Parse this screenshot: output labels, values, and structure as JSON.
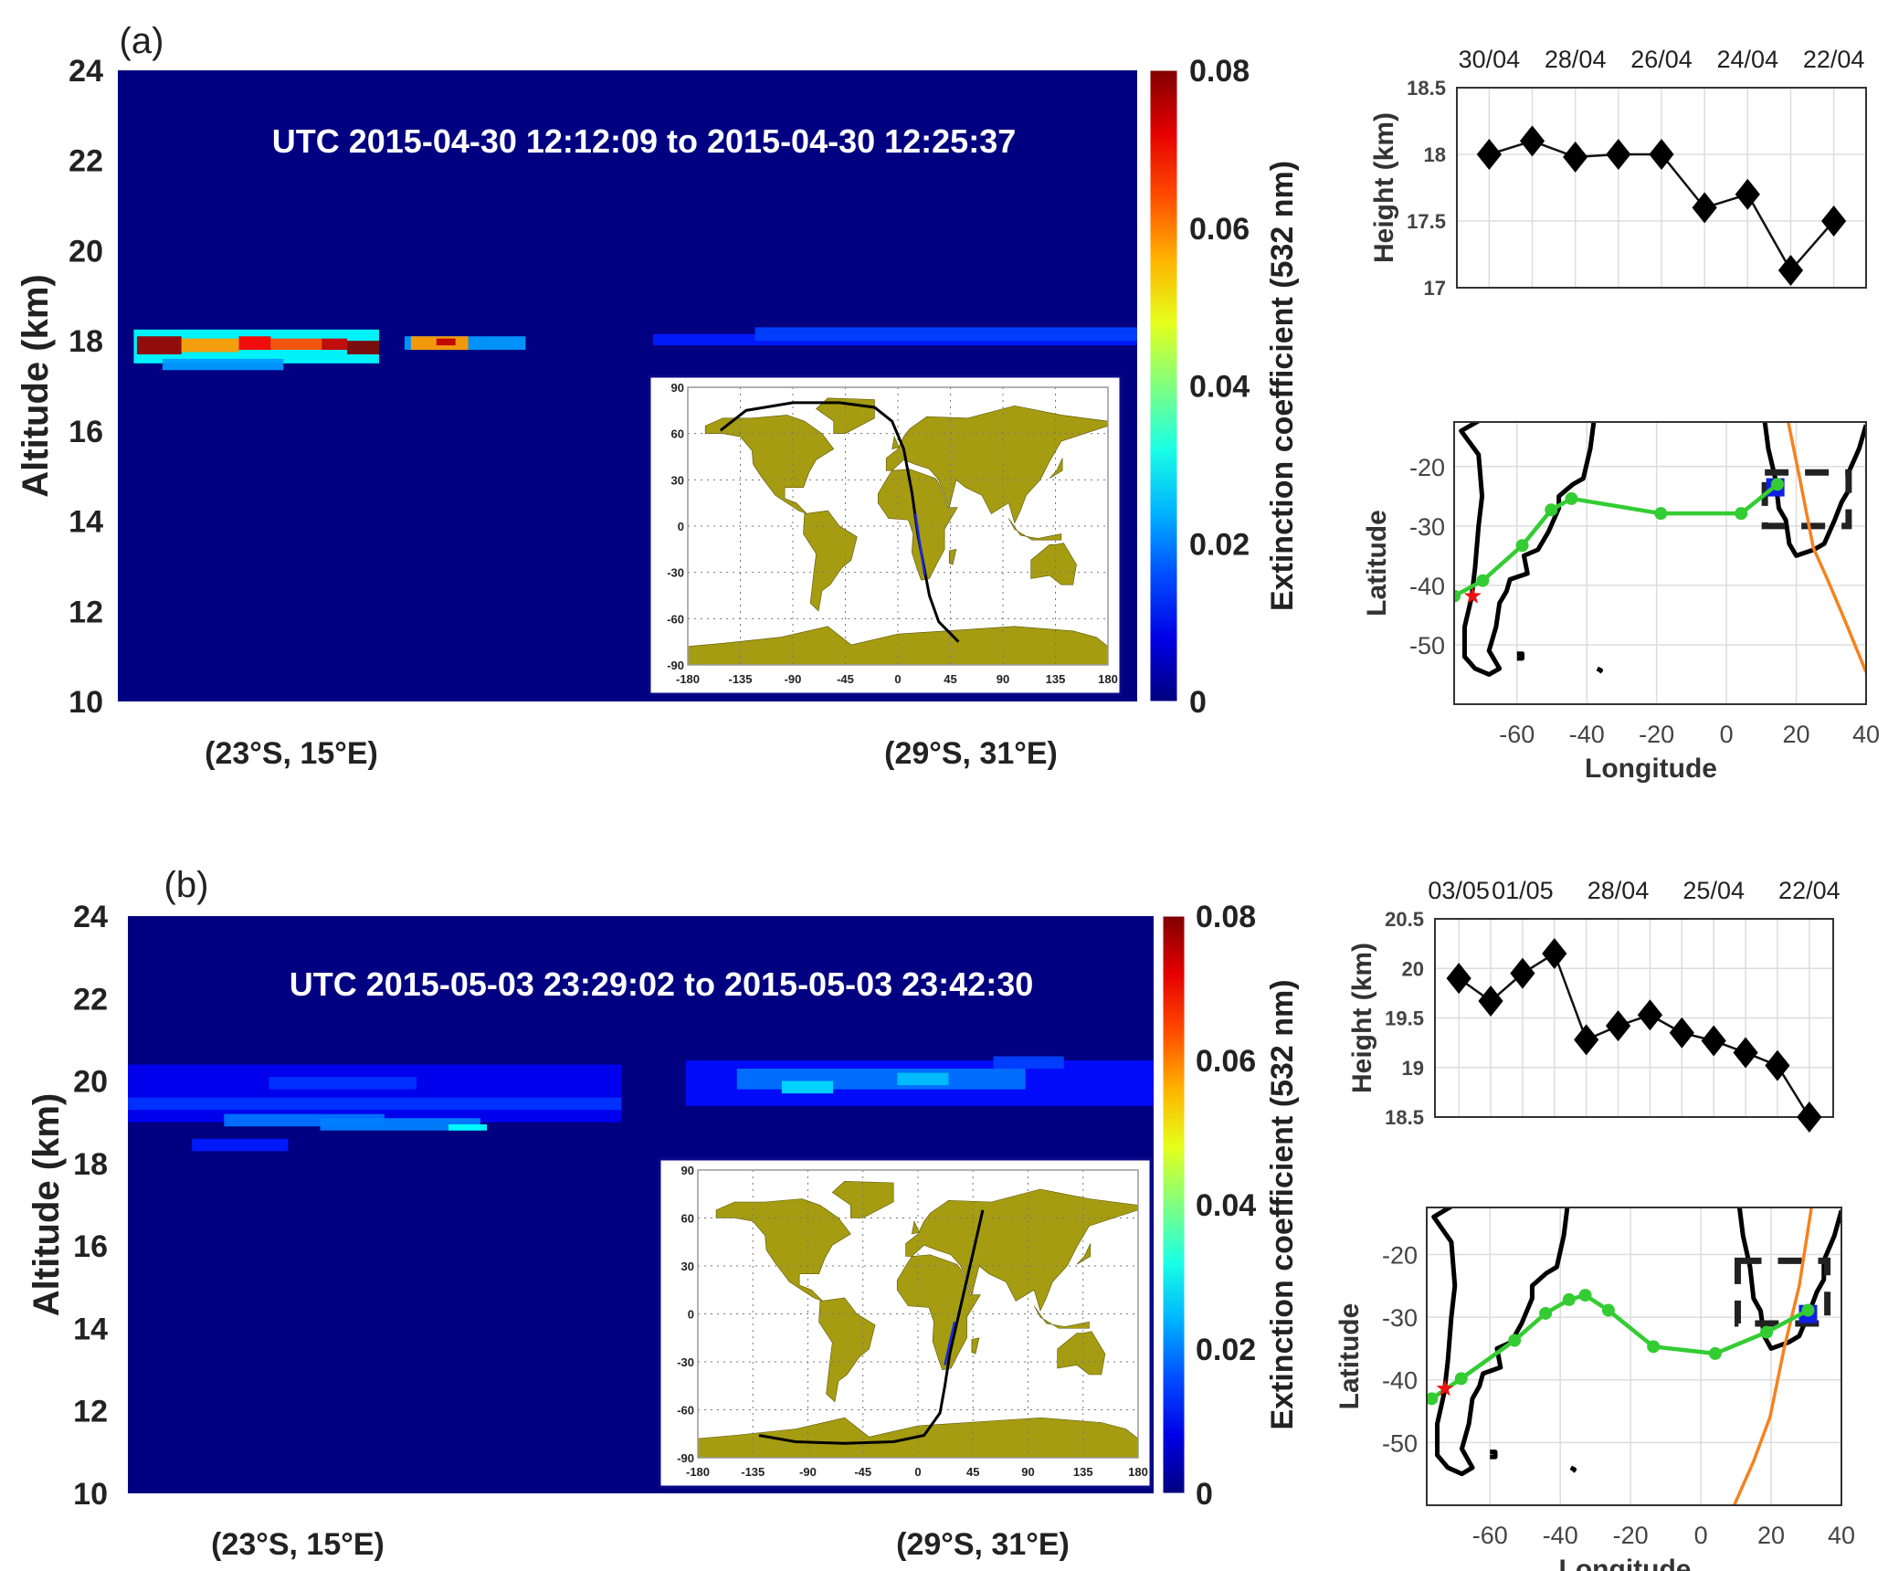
{
  "chart_data": [
    {
      "panel_label": "(a)",
      "type": "heatmap",
      "title": "UTC 2015-04-30 12:12:09 to 2015-04-30 12:25:37",
      "ylabel": "Altitude (km)",
      "ylim": [
        10,
        24
      ],
      "yticks": [
        "10",
        "12",
        "14",
        "16",
        "18",
        "20",
        "22",
        "24"
      ],
      "xlim_lon": [
        15,
        31
      ],
      "x_start_label": "(23°S, 15°E)",
      "x_end_label": "(29°S, 31°E)",
      "colorbar": {
        "label": "Extinction coefficient (532 nm)",
        "range": [
          0,
          0.08
        ],
        "ticks": [
          "0",
          "0.02",
          "0.04",
          "0.06",
          "0.08"
        ]
      },
      "cells": [
        [
          15.25,
          19.1,
          17.5,
          18.25,
          0.03
        ],
        [
          15.7,
          17.6,
          17.35,
          17.6,
          0.022
        ],
        [
          15.3,
          16.0,
          17.7,
          18.1,
          0.078
        ],
        [
          16.0,
          16.9,
          17.75,
          18.05,
          0.058
        ],
        [
          16.9,
          17.4,
          17.8,
          18.1,
          0.07
        ],
        [
          17.4,
          18.2,
          17.8,
          18.05,
          0.064
        ],
        [
          18.2,
          18.6,
          17.8,
          18.05,
          0.074
        ],
        [
          18.6,
          19.1,
          17.7,
          18.0,
          0.08
        ],
        [
          19.5,
          21.4,
          17.8,
          18.1,
          0.022
        ],
        [
          19.6,
          20.5,
          17.8,
          18.1,
          0.058
        ],
        [
          20.0,
          20.3,
          17.9,
          18.05,
          0.075
        ],
        [
          23.4,
          31.0,
          17.9,
          18.15,
          0.012
        ],
        [
          25.0,
          31.0,
          18.0,
          18.3,
          0.015
        ]
      ],
      "inset_map": {
        "xticks": [
          "-180",
          "-135",
          "-90",
          "-45",
          "0",
          "45",
          "90",
          "135",
          "180"
        ],
        "yticks": [
          "-90",
          "-60",
          "-30",
          "0",
          "30",
          "60",
          "90"
        ],
        "orbit_track": [
          [
            -152,
            62
          ],
          [
            -130,
            75
          ],
          [
            -90,
            80
          ],
          [
            -50,
            80
          ],
          [
            -20,
            77
          ],
          [
            -5,
            68
          ],
          [
            5,
            50
          ],
          [
            12,
            22
          ],
          [
            17,
            -5
          ],
          [
            22,
            -25
          ],
          [
            27,
            -45
          ],
          [
            35,
            -62
          ],
          [
            52,
            -75
          ]
        ],
        "calipso_segment": [
          [
            15,
            8
          ],
          [
            19,
            -12
          ],
          [
            23,
            -32
          ]
        ]
      },
      "height_series": {
        "type": "line",
        "ylabel": "Height (km)",
        "ylim": [
          17,
          18.5
        ],
        "yticks": [
          "17",
          "17.5",
          "18",
          "18.5"
        ],
        "dates": [
          "30/04",
          "29/04",
          "28/04",
          "27/04",
          "26/04",
          "25/04",
          "24/04",
          "23/04",
          "22/04"
        ],
        "tick_labels": [
          "30/04",
          "",
          "28/04",
          "",
          "26/04",
          "",
          "24/04",
          "",
          "22/04"
        ],
        "values": [
          18.0,
          18.1,
          17.98,
          18.0,
          18.0,
          17.6,
          17.7,
          17.13,
          17.5
        ]
      },
      "trajectory": {
        "type": "line",
        "xlabel": "Longitude",
        "ylabel": "Latitude",
        "xlim": [
          -78,
          40
        ],
        "ylim": [
          -60,
          -12.5
        ],
        "xticks": [
          "-60",
          "-40",
          "-20",
          "0",
          "20",
          "40"
        ],
        "yticks": [
          "-20",
          "-30",
          "-40",
          "-50"
        ],
        "points": [
          [
            -78,
            -41.8
          ],
          [
            -69.8,
            -39.2
          ],
          [
            -58.5,
            -33.3
          ],
          [
            -50.2,
            -27.3
          ],
          [
            -44.4,
            -25.4
          ],
          [
            -18.8,
            -27.9
          ],
          [
            4.2,
            -27.9
          ],
          [
            14.6,
            -23
          ]
        ],
        "source_star": [
          -72.7,
          -41.8
        ],
        "target_square": [
          14,
          -23.5
        ],
        "box_lon": [
          11,
          35
        ],
        "box_lat": [
          -30,
          -21
        ],
        "orbit": [
          [
            17.6,
            -12.2
          ],
          [
            21,
            -22
          ],
          [
            24.9,
            -33.7
          ],
          [
            28.8,
            -38.8
          ],
          [
            34,
            -46
          ],
          [
            40,
            -54.6
          ]
        ]
      }
    },
    {
      "panel_label": "(b)",
      "type": "heatmap",
      "title": "UTC 2015-05-03 23:29:02 to 2015-05-03 23:42:30",
      "ylabel": "Altitude (km)",
      "ylim": [
        10,
        24
      ],
      "yticks": [
        "10",
        "12",
        "14",
        "16",
        "18",
        "20",
        "22",
        "24"
      ],
      "xlim_lon": [
        15,
        31
      ],
      "x_start_label": "(23°S, 15°E)",
      "x_end_label": "(29°S, 31°E)",
      "colorbar": {
        "label": "Extinction coefficient (532 nm)",
        "range": [
          0,
          0.08
        ],
        "ticks": [
          "0",
          "0.02",
          "0.04",
          "0.06",
          "0.08"
        ]
      },
      "cells": [
        [
          15.0,
          22.7,
          19.0,
          20.4,
          0.009
        ],
        [
          15.0,
          22.7,
          19.3,
          19.6,
          0.014
        ],
        [
          16.5,
          19.0,
          18.9,
          19.2,
          0.019
        ],
        [
          18.0,
          20.5,
          18.8,
          19.1,
          0.02
        ],
        [
          20.0,
          20.6,
          18.8,
          18.95,
          0.03
        ],
        [
          16.0,
          17.5,
          18.3,
          18.6,
          0.012
        ],
        [
          17.2,
          19.5,
          19.8,
          20.1,
          0.014
        ],
        [
          23.7,
          31.0,
          19.4,
          20.5,
          0.011
        ],
        [
          24.5,
          29.0,
          19.8,
          20.3,
          0.019
        ],
        [
          25.2,
          26.0,
          19.7,
          20.0,
          0.027
        ],
        [
          27.0,
          27.8,
          19.9,
          20.2,
          0.025
        ],
        [
          28.5,
          29.6,
          20.3,
          20.6,
          0.015
        ]
      ],
      "inset_map": {
        "xticks": [
          "-180",
          "-135",
          "-90",
          "-45",
          "0",
          "45",
          "90",
          "135",
          "180"
        ],
        "yticks": [
          "-90",
          "-60",
          "-30",
          "0",
          "30",
          "60",
          "90"
        ],
        "orbit_track": [
          [
            -130,
            -76
          ],
          [
            -100,
            -80
          ],
          [
            -60,
            -81
          ],
          [
            -20,
            -80
          ],
          [
            5,
            -76
          ],
          [
            18,
            -62
          ],
          [
            22,
            -45
          ],
          [
            26,
            -25
          ],
          [
            32,
            -5
          ],
          [
            38,
            15
          ],
          [
            45,
            38
          ],
          [
            53,
            65
          ]
        ],
        "calipso_segment": [
          [
            22,
            -32
          ],
          [
            26,
            -18
          ],
          [
            30,
            -5
          ]
        ]
      },
      "height_series": {
        "type": "line",
        "ylabel": "Height (km)",
        "ylim": [
          18.5,
          20.5
        ],
        "yticks": [
          "18.5",
          "19",
          "19.5",
          "20",
          "20.5"
        ],
        "dates": [
          "03/05",
          "02/05",
          "01/05",
          "30/04",
          "29/04",
          "28/04",
          "27/04",
          "26/04",
          "25/04",
          "24/04",
          "23/04",
          "22/04"
        ],
        "tick_labels": [
          "03/05",
          "",
          "01/05",
          "",
          "",
          "28/04",
          "",
          "",
          "25/04",
          "",
          "",
          "22/04"
        ],
        "values": [
          19.9,
          19.67,
          19.95,
          20.15,
          19.28,
          19.42,
          19.53,
          19.35,
          19.27,
          19.15,
          19.02,
          18.5
        ]
      },
      "trajectory": {
        "type": "line",
        "xlabel": "Longitude",
        "ylabel": "Latitude",
        "xlim": [
          -78,
          40
        ],
        "ylim": [
          -60,
          -12.5
        ],
        "xticks": [
          "-60",
          "-40",
          "-20",
          "0",
          "20",
          "40"
        ],
        "yticks": [
          "-20",
          "-30",
          "-40",
          "-50"
        ],
        "points": [
          [
            -76.6,
            -43.0
          ],
          [
            -68.2,
            -39.8
          ],
          [
            -53.0,
            -33.7
          ],
          [
            -44.2,
            -29.4
          ],
          [
            -37.5,
            -27.2
          ],
          [
            -32.9,
            -26.5
          ],
          [
            -26.3,
            -28.9
          ],
          [
            -13.5,
            -34.7
          ],
          [
            4.1,
            -35.8
          ],
          [
            18.7,
            -32.4
          ],
          [
            30.5,
            -28.9
          ]
        ],
        "source_star": [
          -72.8,
          -41.4
        ],
        "target_square": [
          30.5,
          -29.5
        ],
        "box_lon": [
          10.5,
          36
        ],
        "box_lat": [
          -31,
          -21
        ],
        "orbit": [
          [
            31.5,
            -12.4
          ],
          [
            28,
            -25
          ],
          [
            23.8,
            -34.7
          ],
          [
            19.7,
            -45.9
          ],
          [
            15,
            -53
          ],
          [
            9.5,
            -60
          ]
        ]
      }
    }
  ]
}
